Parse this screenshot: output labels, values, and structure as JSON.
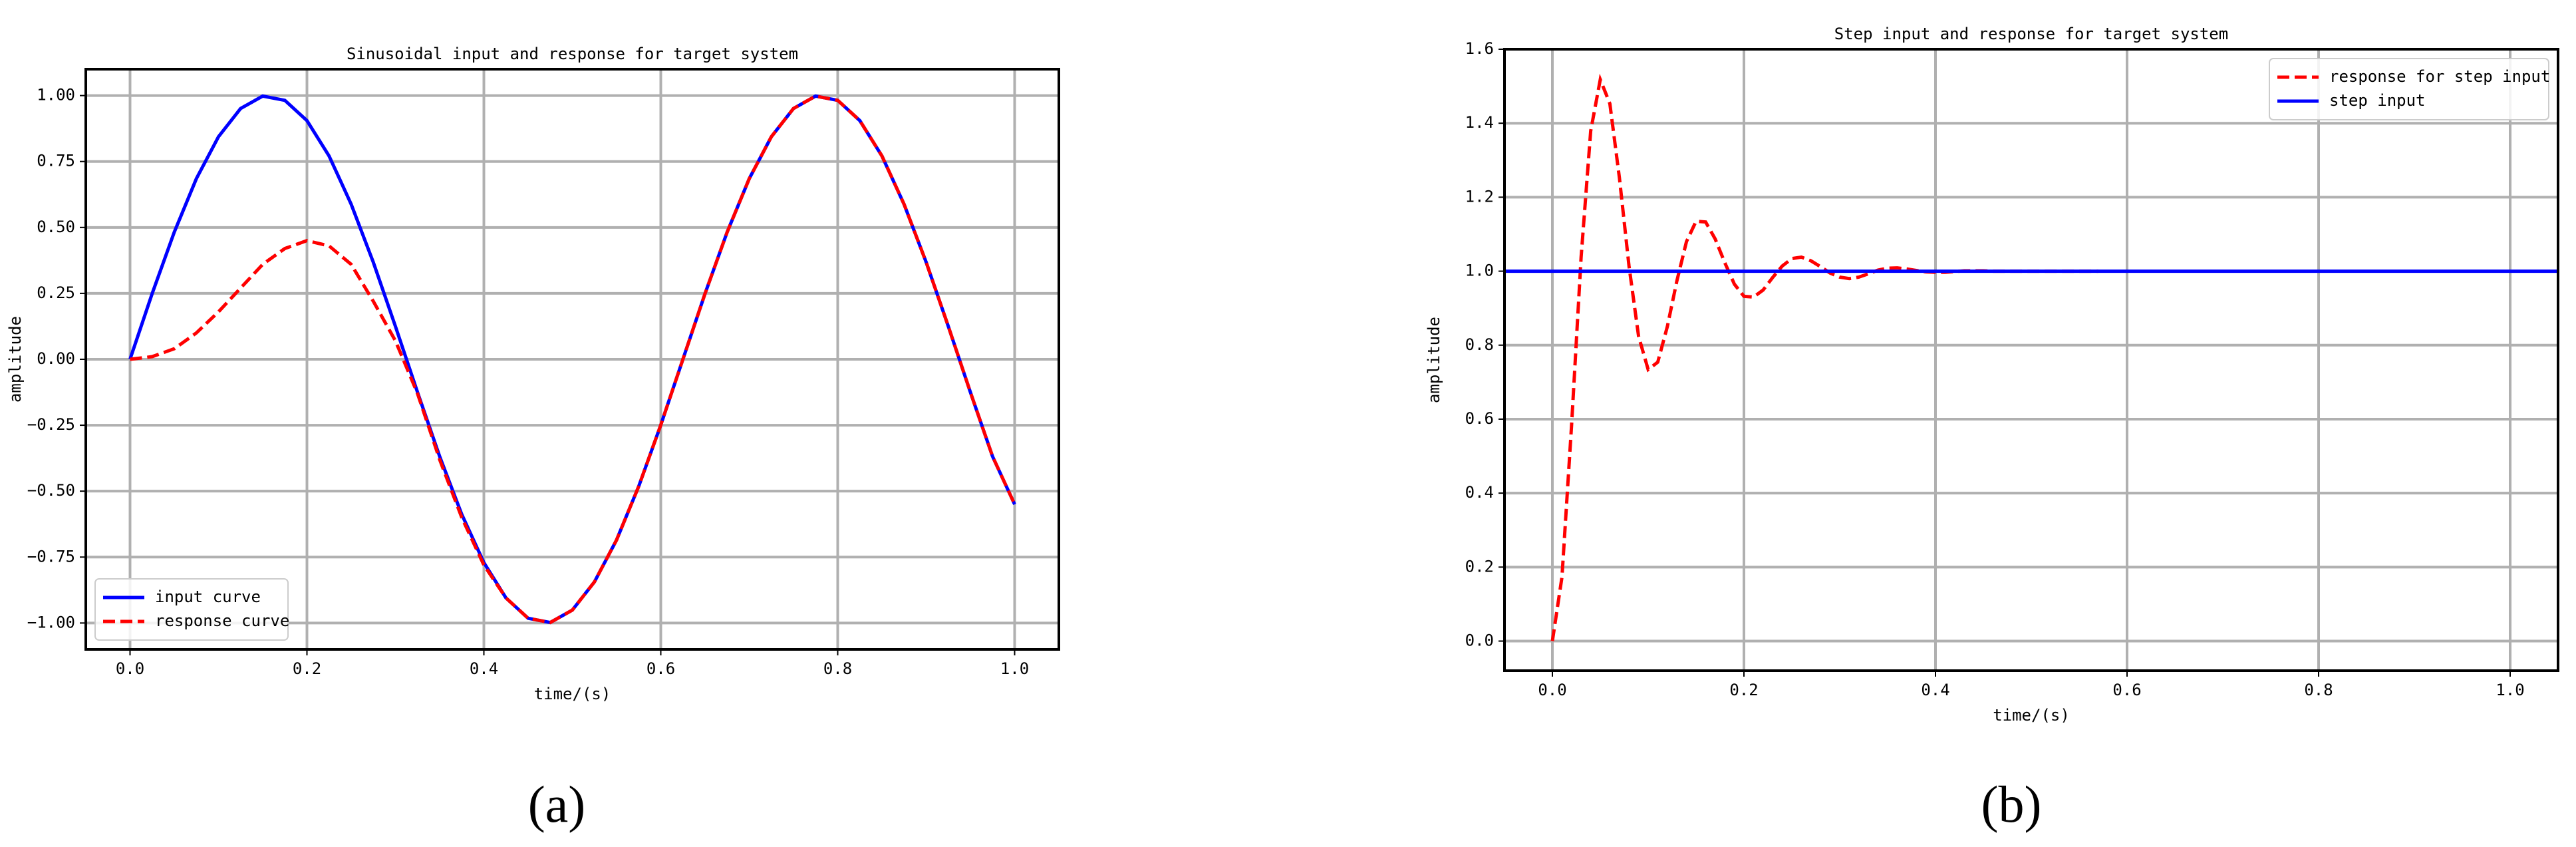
{
  "chart_data": [
    {
      "type": "line",
      "title": "Sinusoidal input and response for target system",
      "caption": "(a)",
      "xlabel": "time/(s)",
      "ylabel": "amplitude",
      "x": [
        0,
        0.025,
        0.05,
        0.075,
        0.1,
        0.125,
        0.15,
        0.175,
        0.2,
        0.225,
        0.25,
        0.275,
        0.3,
        0.325,
        0.35,
        0.375,
        0.4,
        0.425,
        0.45,
        0.475,
        0.5,
        0.525,
        0.55,
        0.575,
        0.6,
        0.625,
        0.65,
        0.675,
        0.7,
        0.725,
        0.75,
        0.775,
        0.8,
        0.825,
        0.85,
        0.875,
        0.9,
        0.925,
        0.95,
        0.975,
        1.0
      ],
      "series": [
        {
          "name": "input curve",
          "color": "#0000ff",
          "dash": false,
          "values": [
            0,
            0.249,
            0.482,
            0.685,
            0.844,
            0.951,
            0.998,
            0.982,
            0.905,
            0.771,
            0.588,
            0.368,
            0.125,
            -0.125,
            -0.368,
            -0.588,
            -0.771,
            -0.905,
            -0.982,
            -0.998,
            -0.951,
            -0.844,
            -0.685,
            -0.482,
            -0.249,
            0,
            0.249,
            0.482,
            0.685,
            0.844,
            0.951,
            0.998,
            0.982,
            0.905,
            0.771,
            0.588,
            0.368,
            0.125,
            -0.125,
            -0.368,
            -0.55
          ]
        },
        {
          "name": "response curve",
          "color": "#ff0000",
          "dash": true,
          "values": [
            0,
            0.01,
            0.04,
            0.1,
            0.18,
            0.27,
            0.36,
            0.42,
            0.45,
            0.43,
            0.36,
            0.22,
            0.07,
            -0.13,
            -0.38,
            -0.6,
            -0.78,
            -0.905,
            -0.982,
            -0.998,
            -0.951,
            -0.844,
            -0.685,
            -0.482,
            -0.249,
            0,
            0.249,
            0.482,
            0.685,
            0.844,
            0.951,
            0.998,
            0.982,
            0.905,
            0.771,
            0.588,
            0.368,
            0.125,
            -0.125,
            -0.368,
            -0.55
          ]
        }
      ],
      "xlim": [
        -0.05,
        1.05
      ],
      "ylim": [
        -1.1,
        1.1
      ],
      "xticks": [
        {
          "value": 0,
          "label": "0.0"
        },
        {
          "value": 0.2,
          "label": "0.2"
        },
        {
          "value": 0.4,
          "label": "0.4"
        },
        {
          "value": 0.6,
          "label": "0.6"
        },
        {
          "value": 0.8,
          "label": "0.8"
        },
        {
          "value": 1,
          "label": "1.0"
        }
      ],
      "yticks": [
        {
          "value": -1,
          "label": "−1.00"
        },
        {
          "value": -0.75,
          "label": "−0.75"
        },
        {
          "value": -0.5,
          "label": "−0.50"
        },
        {
          "value": -0.25,
          "label": "−0.25"
        },
        {
          "value": 0,
          "label": "0.00"
        },
        {
          "value": 0.25,
          "label": "0.25"
        },
        {
          "value": 0.5,
          "label": "0.50"
        },
        {
          "value": 0.75,
          "label": "0.75"
        },
        {
          "value": 1,
          "label": "1.00"
        }
      ],
      "grid": true,
      "legend": "lower left"
    },
    {
      "type": "line",
      "title": "Step input and response for target system",
      "caption": "(b)",
      "xlabel": "time/(s)",
      "ylabel": "amplitude",
      "series": [
        {
          "name": "response for step input",
          "color": "#ff0000",
          "dash": true,
          "x": [
            0,
            0.01,
            0.02,
            0.03,
            0.04,
            0.05,
            0.06,
            0.07,
            0.08,
            0.09,
            0.1,
            0.11,
            0.12,
            0.13,
            0.14,
            0.15,
            0.16,
            0.17,
            0.18,
            0.19,
            0.2,
            0.21,
            0.22,
            0.23,
            0.24,
            0.25,
            0.26,
            0.27,
            0.28,
            0.29,
            0.3,
            0.31,
            0.32,
            0.33,
            0.34,
            0.35,
            0.36,
            0.37,
            0.38,
            0.39,
            0.4,
            0.41,
            0.42,
            0.43,
            0.44,
            0.45,
            0.46,
            0.47,
            0.48,
            0.49,
            0.5,
            0.51,
            0.52,
            0.53,
            0.54,
            0.55,
            0.56,
            0.57
          ],
          "values": [
            0,
            0.173,
            0.582,
            1.038,
            1.379,
            1.518,
            1.453,
            1.252,
            1.014,
            0.824,
            0.734,
            0.754,
            0.85,
            0.974,
            1.08,
            1.135,
            1.133,
            1.087,
            1.023,
            0.965,
            0.932,
            0.93,
            0.949,
            0.983,
            1.014,
            1.034,
            1.038,
            1.028,
            1.012,
            0.995,
            0.984,
            0.98,
            0.984,
            0.993,
            1.003,
            1.008,
            1.009,
            1.006,
            1.002,
            0.998,
            0.997,
            0.997,
            0.999,
            1.001,
            1.001,
            1.001,
            1,
            1,
            1,
            1,
            1,
            1,
            1,
            1,
            1,
            1,
            1,
            1
          ]
        },
        {
          "name": "step input",
          "color": "#0000ff",
          "dash": false,
          "x": [
            -0.05,
            1.05
          ],
          "values": [
            1,
            1
          ]
        }
      ],
      "xlim": [
        -0.05,
        1.05
      ],
      "ylim": [
        -0.08,
        1.6
      ],
      "xticks": [
        {
          "value": 0,
          "label": "0.0"
        },
        {
          "value": 0.2,
          "label": "0.2"
        },
        {
          "value": 0.4,
          "label": "0.4"
        },
        {
          "value": 0.6,
          "label": "0.6"
        },
        {
          "value": 0.8,
          "label": "0.8"
        },
        {
          "value": 1,
          "label": "1.0"
        }
      ],
      "yticks": [
        {
          "value": 0,
          "label": "0.0"
        },
        {
          "value": 0.2,
          "label": "0.2"
        },
        {
          "value": 0.4,
          "label": "0.4"
        },
        {
          "value": 0.6,
          "label": "0.6"
        },
        {
          "value": 0.8,
          "label": "0.8"
        },
        {
          "value": 1,
          "label": "1.0"
        },
        {
          "value": 1.2,
          "label": "1.2"
        },
        {
          "value": 1.4,
          "label": "1.4"
        },
        {
          "value": 1.6,
          "label": "1.6"
        }
      ],
      "grid": true,
      "legend": "upper right"
    }
  ]
}
